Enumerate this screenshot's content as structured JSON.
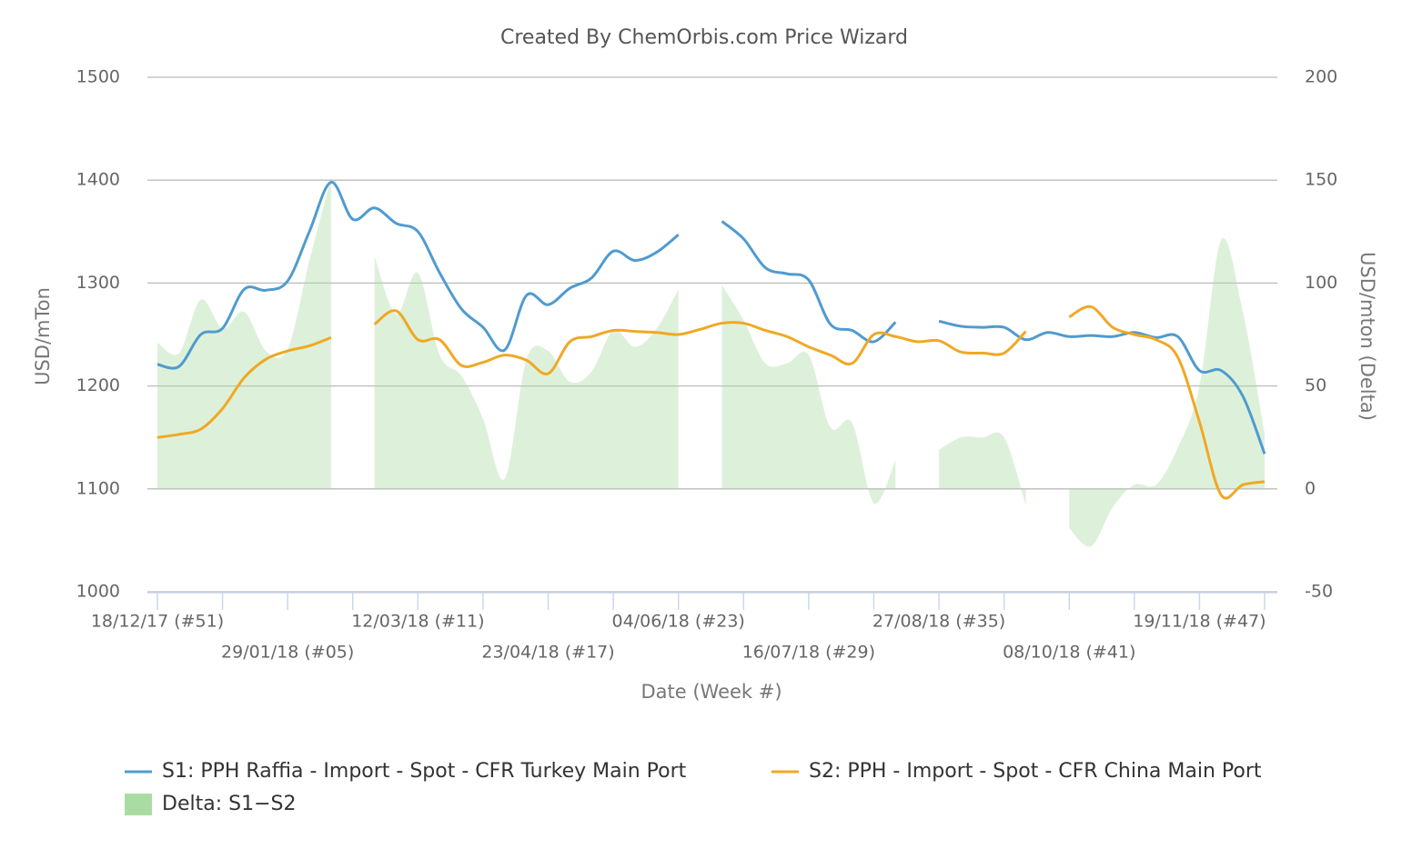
{
  "chart_data": {
    "type": "line",
    "title": "Created By ChemOrbis.com Price Wizard",
    "x_label": "Date (Week #)",
    "y_label": "USD/mTon",
    "y2_label": "USD/mton (Delta)",
    "categories": [
      "18/12/17 (#51)",
      null,
      null,
      null,
      null,
      null,
      "29/01/18 (#05)",
      null,
      null,
      null,
      null,
      null,
      "12/03/18 (#11)",
      null,
      null,
      null,
      null,
      null,
      "23/04/18 (#17)",
      null,
      null,
      null,
      null,
      null,
      "04/06/18 (#23)",
      null,
      null,
      null,
      null,
      null,
      "16/07/18 (#29)",
      null,
      null,
      null,
      null,
      null,
      "27/08/18 (#35)",
      null,
      null,
      null,
      null,
      null,
      "08/10/18 (#41)",
      null,
      null,
      null,
      null,
      null,
      "19/11/18 (#47)",
      null,
      null,
      null
    ],
    "series": [
      {
        "name": "S1: PPH Raffia - Import - Spot - CFR Turkey Main Port",
        "color": "#4f9bcf",
        "type": "line",
        "values": [
          1221,
          1219,
          1250,
          1256,
          1294,
          1293,
          1302,
          1350,
          1398,
          1362,
          1373,
          1358,
          1350,
          1310,
          1275,
          1257,
          1235,
          1288,
          1279,
          1295,
          1305,
          1331,
          1322,
          1330,
          1347,
          null,
          1360,
          1343,
          1315,
          1309,
          1303,
          1260,
          1254,
          1243,
          1262,
          null,
          1263,
          1258,
          1257,
          1257,
          1245,
          1252,
          1248,
          1249,
          1248,
          1252,
          1247,
          1248,
          1215,
          1215,
          1190,
          1134
        ]
      },
      {
        "name": "S2: PPH - Import - Spot - CFR China Main Port",
        "color": "#f0a824",
        "type": "line",
        "values": [
          1150,
          1153,
          1158,
          1178,
          1208,
          1226,
          1234,
          1239,
          1247,
          null,
          1260,
          1273,
          1245,
          1245,
          1220,
          1223,
          1230,
          1225,
          1212,
          1243,
          1248,
          1254,
          1253,
          1252,
          1250,
          1255,
          1261,
          1261,
          1254,
          1248,
          1238,
          1230,
          1222,
          1250,
          1248,
          1243,
          1244,
          1233,
          1232,
          1232,
          1253,
          null,
          1267,
          1277,
          1257,
          1250,
          1245,
          1228,
          1165,
          1094,
          1104,
          1107
        ]
      },
      {
        "name": "Delta: S1−S2",
        "color": "#a9dca3",
        "type": "area",
        "axis": "y2",
        "values": [
          71,
          66,
          92,
          78,
          86,
          67,
          68,
          111,
          151,
          null,
          113,
          85,
          105,
          65,
          55,
          34,
          5,
          63,
          67,
          52,
          57,
          77,
          69,
          78,
          97,
          null,
          99,
          82,
          61,
          61,
          65,
          30,
          32,
          -7,
          14,
          null,
          19,
          25,
          25,
          25,
          -8,
          null,
          -19,
          -28,
          -9,
          2,
          2,
          20,
          50,
          121,
          86,
          27
        ]
      }
    ],
    "ylim": [
      1000,
      1500
    ],
    "yticks": [
      1000,
      1100,
      1200,
      1300,
      1400,
      1500
    ],
    "y2lim": [
      -50,
      200
    ],
    "y2ticks": [
      -50,
      0,
      50,
      100,
      150,
      200
    ],
    "grid": true,
    "legend": "bottom"
  }
}
